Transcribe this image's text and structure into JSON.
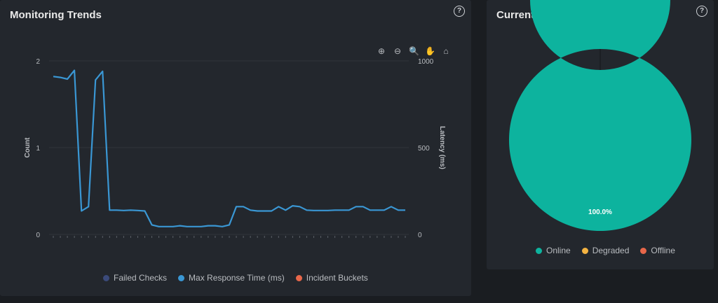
{
  "trends": {
    "title": "Monitoring Trends",
    "help": "?",
    "toolbar": [
      {
        "name": "zoom-in-icon",
        "glyph": "⊕",
        "active": false
      },
      {
        "name": "zoom-out-icon",
        "glyph": "⊖",
        "active": false
      },
      {
        "name": "selection-zoom-icon",
        "glyph": "🔍",
        "active": true
      },
      {
        "name": "pan-icon",
        "glyph": "✋",
        "active": false
      },
      {
        "name": "reset-zoom-icon",
        "glyph": "⌂",
        "active": false
      }
    ]
  },
  "status": {
    "title": "Current Status Distribution",
    "help": "?"
  },
  "chart_data": [
    {
      "type": "line",
      "title": "Monitoring Trends",
      "ylabel_left": "Count",
      "ylabel_right": "Latency (ms)",
      "left_axis": {
        "ticks": [
          "0",
          "1",
          "2"
        ],
        "ylim": [
          0,
          2
        ]
      },
      "right_axis": {
        "ticks": [
          "0",
          "500",
          "1000"
        ],
        "ylim": [
          0,
          1000
        ]
      },
      "grid": true,
      "legend_position": "bottom",
      "series": [
        {
          "name": "Failed Checks",
          "color": "#3b4a7a",
          "axis": "left",
          "values": []
        },
        {
          "name": "Max Response Time (ms)",
          "color": "#3a97d4",
          "axis": "right",
          "values": [
            910,
            905,
            895,
            945,
            135,
            160,
            890,
            940,
            140,
            140,
            138,
            140,
            138,
            135,
            55,
            45,
            45,
            45,
            50,
            45,
            45,
            45,
            50,
            50,
            45,
            55,
            160,
            160,
            140,
            135,
            135,
            135,
            160,
            140,
            165,
            160,
            140,
            138,
            138,
            138,
            140,
            140,
            140,
            160,
            160,
            140,
            140,
            140,
            160,
            140,
            140
          ]
        },
        {
          "name": "Incident Buckets",
          "color": "#e8674a",
          "axis": "left",
          "values": []
        }
      ]
    },
    {
      "type": "pie",
      "title": "Current Status Distribution",
      "legend_position": "bottom",
      "slices": [
        {
          "name": "Online",
          "value": 100.0,
          "label": "100.0%",
          "color": "#0db39e"
        },
        {
          "name": "Degraded",
          "value": 0,
          "label": "",
          "color": "#f4b342"
        },
        {
          "name": "Offline",
          "value": 0,
          "label": "",
          "color": "#e8674a"
        }
      ]
    }
  ]
}
